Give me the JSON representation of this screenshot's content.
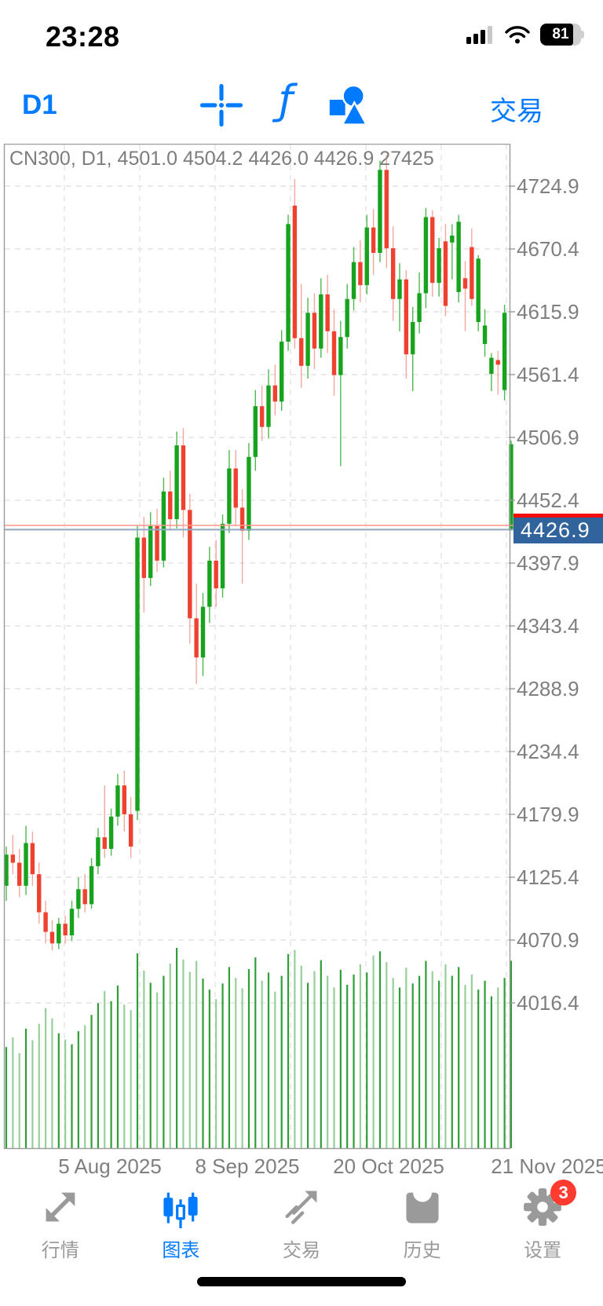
{
  "status_bar": {
    "time": "23:28",
    "battery_percent": "81"
  },
  "toolbar": {
    "timeframe": "D1",
    "crosshair_icon": "crosshair",
    "function_icon": "ƒ",
    "objects_icon": "shapes",
    "trade_label": "交易"
  },
  "chart": {
    "header": "CN300, D1, 4501.0 4504.2 4426.0 4426.9 27425",
    "bid_label": "4426.9",
    "colors": {
      "accent": "#007AFF",
      "candle_up": "#17a31d",
      "candle_down": "#ef4130",
      "wick_up": "#4db852",
      "wick_down": "#f6a79d",
      "vol_up": "#2f9e36",
      "vol_down": "#96cf9a",
      "bid_line": "#8ea9c0",
      "ask_line": "#ff968c",
      "bid_badge": "#31639c",
      "ask_badge": "#f20d06",
      "grid": "#e3e3e3",
      "frame": "#9a9a9a",
      "axis_text": "#7f7f7f"
    }
  },
  "chart_data": {
    "type": "candlestick",
    "symbol": "CN300",
    "timeframe": "D1",
    "title": "CN300, D1",
    "current_ohlc": {
      "open": 4501.0,
      "high": 4504.2,
      "low": 4426.0,
      "close": 4426.9,
      "volume": 27425
    },
    "bid": 4426.9,
    "ask": 4430.6,
    "ylim": [
      3990,
      4765
    ],
    "grid": true,
    "y_ticks": [
      4724.9,
      4670.4,
      4615.9,
      4561.4,
      4506.9,
      4452.4,
      4397.9,
      4343.4,
      4288.9,
      4234.4,
      4179.9,
      4125.4,
      4070.9,
      4016.4
    ],
    "x_labels": [
      "5 Aug 2025",
      "8 Sep 2025",
      "20 Oct 2025",
      "21 Nov 2025"
    ],
    "candles": [
      [
        4118,
        4152,
        4105,
        4145
      ],
      [
        4145,
        4162,
        4128,
        4138
      ],
      [
        4138,
        4150,
        4108,
        4118
      ],
      [
        4118,
        4170,
        4110,
        4155
      ],
      [
        4155,
        4165,
        4118,
        4128
      ],
      [
        4128,
        4138,
        4085,
        4095
      ],
      [
        4095,
        4105,
        4068,
        4078
      ],
      [
        4078,
        4088,
        4062,
        4068
      ],
      [
        4068,
        4090,
        4063,
        4085
      ],
      [
        4085,
        4092,
        4068,
        4075
      ],
      [
        4075,
        4105,
        4070,
        4098
      ],
      [
        4098,
        4125,
        4090,
        4115
      ],
      [
        4115,
        4128,
        4095,
        4102
      ],
      [
        4102,
        4142,
        4098,
        4135
      ],
      [
        4135,
        4168,
        4128,
        4160
      ],
      [
        4160,
        4205,
        4142,
        4150
      ],
      [
        4150,
        4185,
        4144,
        4178
      ],
      [
        4178,
        4215,
        4170,
        4205
      ],
      [
        4205,
        4218,
        4165,
        4180
      ],
      [
        4180,
        4195,
        4142,
        4152
      ],
      [
        4183,
        4430,
        4175,
        4420
      ],
      [
        4420,
        4438,
        4355,
        4385
      ],
      [
        4385,
        4442,
        4378,
        4430
      ],
      [
        4430,
        4445,
        4390,
        4400
      ],
      [
        4400,
        4472,
        4394,
        4460
      ],
      [
        4460,
        4478,
        4426,
        4436
      ],
      [
        4436,
        4512,
        4428,
        4500
      ],
      [
        4500,
        4515,
        4420,
        4444
      ],
      [
        4444,
        4458,
        4328,
        4350
      ],
      [
        4350,
        4380,
        4293,
        4316
      ],
      [
        4316,
        4372,
        4300,
        4360
      ],
      [
        4360,
        4412,
        4346,
        4400
      ],
      [
        4400,
        4418,
        4360,
        4376
      ],
      [
        4376,
        4440,
        4368,
        4432
      ],
      [
        4432,
        4496,
        4424,
        4480
      ],
      [
        4480,
        4496,
        4430,
        4446
      ],
      [
        4446,
        4462,
        4380,
        4426
      ],
      [
        4426,
        4502,
        4418,
        4490
      ],
      [
        4490,
        4548,
        4478,
        4534
      ],
      [
        4534,
        4552,
        4504,
        4516
      ],
      [
        4516,
        4566,
        4506,
        4552
      ],
      [
        4552,
        4570,
        4526,
        4538
      ],
      [
        4538,
        4600,
        4530,
        4590
      ],
      [
        4590,
        4700,
        4582,
        4692
      ],
      [
        4708,
        4731,
        4584,
        4593
      ],
      [
        4593,
        4640,
        4550,
        4569
      ],
      [
        4569,
        4628,
        4558,
        4615
      ],
      [
        4615,
        4632,
        4566,
        4584
      ],
      [
        4584,
        4645,
        4576,
        4631
      ],
      [
        4631,
        4648,
        4580,
        4599
      ],
      [
        4599,
        4618,
        4543,
        4561
      ],
      [
        4561,
        4608,
        4482,
        4594
      ],
      [
        4594,
        4640,
        4584,
        4627
      ],
      [
        4627,
        4672,
        4617,
        4659
      ],
      [
        4659,
        4678,
        4624,
        4639
      ],
      [
        4639,
        4700,
        4631,
        4689
      ],
      [
        4689,
        4705,
        4648,
        4667
      ],
      [
        4667,
        4747,
        4659,
        4739
      ],
      [
        4739,
        4752,
        4654,
        4671
      ],
      [
        4671,
        4690,
        4608,
        4627
      ],
      [
        4627,
        4658,
        4599,
        4644
      ],
      [
        4644,
        4652,
        4558,
        4579
      ],
      [
        4579,
        4620,
        4547,
        4607
      ],
      [
        4607,
        4650,
        4597,
        4632
      ],
      [
        4632,
        4706,
        4619,
        4698
      ],
      [
        4698,
        4704,
        4629,
        4641
      ],
      [
        4641,
        4680,
        4629,
        4671
      ],
      [
        4677,
        4692,
        4612,
        4621
      ],
      [
        4676,
        4692,
        4644,
        4682
      ],
      [
        4633,
        4700,
        4624,
        4694
      ],
      [
        4645,
        4660,
        4599,
        4636
      ],
      [
        4672,
        4688,
        4621,
        4627
      ],
      [
        4607,
        4665,
        4599,
        4662
      ],
      [
        4588,
        4618,
        4577,
        4604
      ],
      [
        4562,
        4580,
        4547,
        4576
      ],
      [
        4574,
        4582,
        4544,
        4570
      ],
      [
        4548,
        4622,
        4539,
        4615
      ],
      [
        4501.0,
        4504.2,
        4426.0,
        4426.9,
        "u"
      ]
    ],
    "volumes": [
      14800,
      16200,
      13900,
      17500,
      15800,
      18200,
      20500,
      19000,
      16800,
      15900,
      15200,
      17100,
      18000,
      19500,
      21200,
      23000,
      21500,
      23800,
      21000,
      20200,
      28500,
      26000,
      24200,
      22800,
      25200,
      27000,
      29300,
      27600,
      25800,
      27400,
      24800,
      23200,
      21800,
      24100,
      26500,
      24900,
      23400,
      26200,
      27900,
      24500,
      25700,
      22900,
      25200,
      28400,
      29000,
      26700,
      24200,
      25900,
      27500,
      25200,
      23500,
      26100,
      23900,
      25400,
      26900,
      25700,
      28200,
      28800,
      27200,
      24900,
      23500,
      26400,
      24100,
      25200,
      27400,
      25900,
      24500,
      26900,
      25200,
      26500,
      23900,
      25400,
      23200,
      24500,
      22200,
      23500,
      24900,
      27425
    ]
  },
  "tab_bar": {
    "items": [
      {
        "label": "行情",
        "active": false
      },
      {
        "label": "图表",
        "active": true
      },
      {
        "label": "交易",
        "active": false
      },
      {
        "label": "历史",
        "active": false
      },
      {
        "label": "设置",
        "active": false,
        "badge": "3"
      }
    ]
  }
}
